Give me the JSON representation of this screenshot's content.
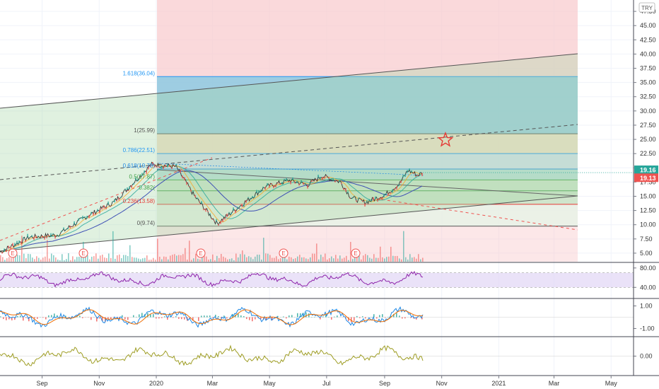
{
  "chart_data": {
    "type": "line",
    "currency_badge": "TRY",
    "time_axis": [
      "Sep",
      "Nov",
      "2020",
      "Mar",
      "May",
      "Jul",
      "Sep",
      "Nov",
      "2021",
      "Mar",
      "May"
    ],
    "price_axis": {
      "ticks": [
        "47.50",
        "45.00",
        "42.50",
        "40.00",
        "37.50",
        "35.00",
        "32.50",
        "30.00",
        "27.50",
        "25.00",
        "22.50",
        "20.00",
        "17.50",
        "15.00",
        "12.50",
        "10.00",
        "7.50",
        "5.00"
      ],
      "range": [
        3.5,
        49.5
      ]
    },
    "price_tags": [
      {
        "value": "19.16",
        "color": "#26a69a"
      },
      {
        "value": "19.13",
        "color": "#ef5350"
      }
    ],
    "fib_levels": [
      {
        "ratio": 1.618,
        "value": 36.04,
        "label": "1.618(36.04)",
        "color": "#2196f3",
        "fill": "#bbdefb"
      },
      {
        "ratio": 1,
        "value": 25.99,
        "label": "1(25.99)",
        "color": "#555555",
        "fill": "#f3e0c8"
      },
      {
        "ratio": 0.786,
        "value": 22.51,
        "label": "0.786(22.51)",
        "color": "#2196f3",
        "fill": "#cfe2f3"
      },
      {
        "ratio": 0.618,
        "value": 19.78,
        "label": "0.618(19.78)",
        "color": "#1e88e5",
        "fill": "#b2dfdb"
      },
      {
        "ratio": 0.5,
        "value": 17.87,
        "label": "0.5(17.87)",
        "color": "#43a047",
        "fill": "#c8e6c9"
      },
      {
        "ratio": 0.382,
        "value": 15.96,
        "label": "0.382(",
        "color": "#43a047",
        "fill": "#c8e6c9"
      },
      {
        "ratio": 0.236,
        "value": 13.58,
        "label": "0.236(13.58)",
        "color": "#e53935",
        "fill": "#e8f5e9"
      },
      {
        "ratio": 0,
        "value": 9.74,
        "label": "0(9.74)",
        "color": "#555555",
        "fill": "#ffcdd2"
      }
    ],
    "price_series": [
      {
        "t": "2019-08-01",
        "v": 5.2
      },
      {
        "t": "2019-09-01",
        "v": 7.8
      },
      {
        "t": "2019-10-01",
        "v": 8.2
      },
      {
        "t": "2019-11-01",
        "v": 11.4
      },
      {
        "t": "2019-12-01",
        "v": 14.0
      },
      {
        "t": "2020-01-10",
        "v": 20.6
      },
      {
        "t": "2020-02-05",
        "v": 20.2
      },
      {
        "t": "2020-02-25",
        "v": 15.0
      },
      {
        "t": "2020-03-20",
        "v": 10.2
      },
      {
        "t": "2020-04-15",
        "v": 13.5
      },
      {
        "t": "2020-05-10",
        "v": 16.6
      },
      {
        "t": "2020-06-05",
        "v": 17.8
      },
      {
        "t": "2020-06-25",
        "v": 17.0
      },
      {
        "t": "2020-07-10",
        "v": 18.6
      },
      {
        "t": "2020-07-30",
        "v": 17.5
      },
      {
        "t": "2020-08-10",
        "v": 14.8
      },
      {
        "t": "2020-08-25",
        "v": 13.9
      },
      {
        "t": "2020-09-15",
        "v": 15.2
      },
      {
        "t": "2020-10-01",
        "v": 17.2
      },
      {
        "t": "2020-10-10",
        "v": 19.6
      },
      {
        "t": "2020-10-20",
        "v": 18.7
      },
      {
        "t": "2020-10-26",
        "v": 19.16
      }
    ],
    "oscillators": [
      {
        "name": "rsi",
        "ticks": [
          "80.00",
          "40.00"
        ],
        "band": [
          40,
          70
        ],
        "range": [
          20,
          90
        ],
        "color": "#8e24aa"
      },
      {
        "name": "macd",
        "ticks": [
          "1.00",
          "-1.00"
        ],
        "range": [
          -1.6,
          1.6
        ],
        "colors": [
          "#1e88e5",
          "#ef6c00"
        ]
      },
      {
        "name": "momentum",
        "ticks": [
          "0.00"
        ],
        "range": [
          -3,
          3
        ],
        "color": "#9e9d24"
      }
    ],
    "earnings_markers": [
      "E",
      "E",
      "E",
      "E",
      "E"
    ],
    "target_marker": "star",
    "grid": true,
    "colors": {
      "up": "#26a69a",
      "down": "#ef5350",
      "rsi_band": "#e1d5f5"
    }
  }
}
